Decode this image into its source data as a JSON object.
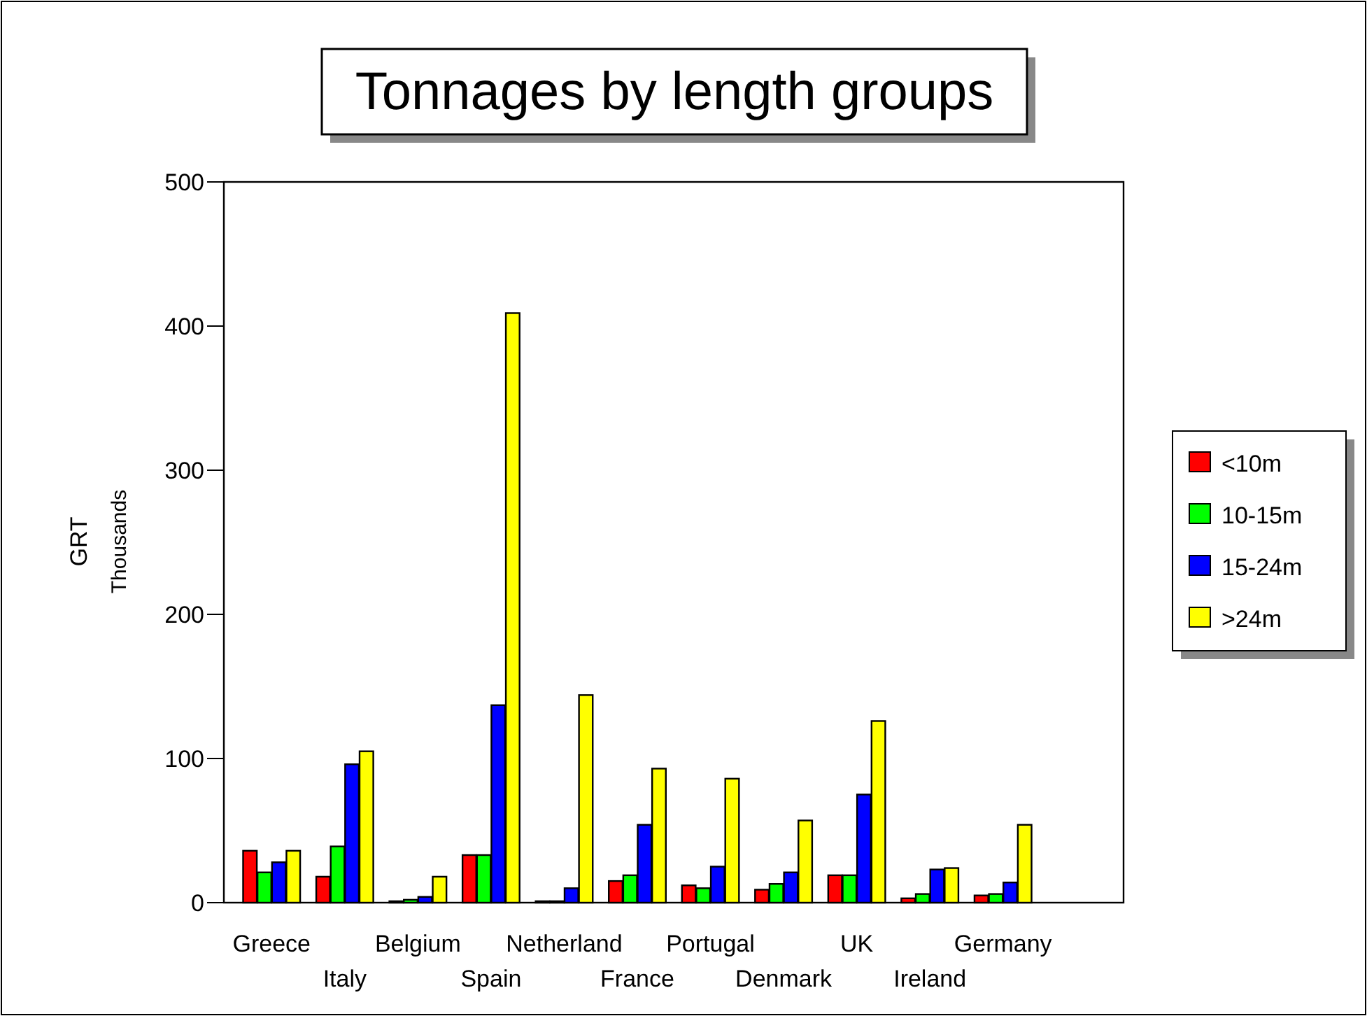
{
  "chart_data": {
    "type": "bar",
    "title": "Tonnages by length groups",
    "ylabel": "GRT\nThousands",
    "categories": [
      "Greece",
      "Italy",
      "Belgium",
      "Spain",
      "Netherland",
      "France",
      "Portugal",
      "Denmark",
      "UK",
      "Ireland",
      "Germany"
    ],
    "series": [
      {
        "name": "<10m",
        "color": "#ff0000",
        "values": [
          36,
          18,
          1,
          33,
          1,
          15,
          12,
          9,
          19,
          3,
          5
        ]
      },
      {
        "name": "10-15m",
        "color": "#00ff00",
        "values": [
          21,
          39,
          2,
          33,
          1,
          19,
          10,
          13,
          19,
          6,
          6
        ]
      },
      {
        "name": "15-24m",
        "color": "#0000ff",
        "values": [
          28,
          96,
          4,
          137,
          10,
          54,
          25,
          21,
          75,
          23,
          14
        ]
      },
      {
        "name": ">24m",
        "color": "#ffff00",
        "values": [
          36,
          105,
          18,
          409,
          144,
          93,
          86,
          57,
          126,
          24,
          54
        ]
      }
    ],
    "ylim": [
      0,
      500
    ],
    "yticks": [
      0,
      100,
      200,
      300,
      400,
      500
    ],
    "grid": false,
    "legend": "right"
  }
}
